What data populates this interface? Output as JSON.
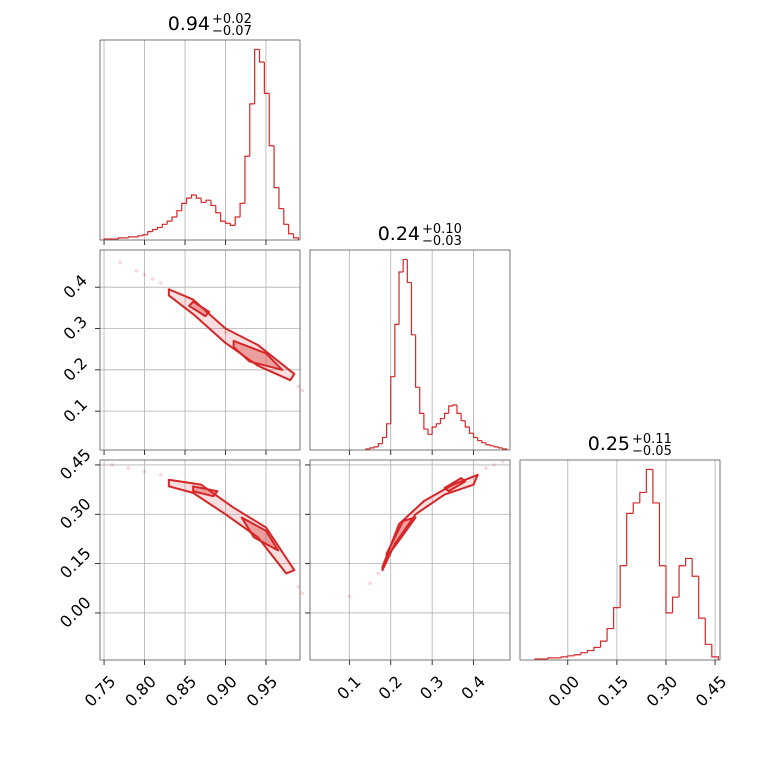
{
  "chart_data": [
    {
      "type": "histogram",
      "title": {
        "value": "0.94",
        "plus": "+0.02",
        "minus": "−0.07"
      },
      "color": "#d62728",
      "bins": [
        0.75,
        0.756,
        0.762,
        0.768,
        0.774,
        0.78,
        0.786,
        0.792,
        0.798,
        0.804,
        0.81,
        0.816,
        0.822,
        0.828,
        0.834,
        0.84,
        0.846,
        0.852,
        0.858,
        0.864,
        0.87,
        0.876,
        0.882,
        0.888,
        0.894,
        0.9,
        0.906,
        0.912,
        0.918,
        0.924,
        0.93,
        0.936,
        0.942,
        0.948,
        0.954,
        0.96,
        0.966,
        0.972,
        0.978,
        0.984,
        0.99
      ],
      "values": [
        1,
        1,
        1,
        2,
        2,
        3,
        3,
        4,
        5,
        8,
        10,
        12,
        15,
        18,
        22,
        28,
        35,
        40,
        43,
        40,
        36,
        38,
        33,
        26,
        18,
        16,
        14,
        22,
        35,
        80,
        130,
        182,
        170,
        140,
        90,
        50,
        30,
        15,
        6,
        2
      ],
      "xlim": [
        0.745,
        0.992
      ],
      "xticks": [
        0.75,
        0.8,
        0.85,
        0.9,
        0.95
      ],
      "ylim": [
        0,
        191
      ],
      "grid": true
    },
    {
      "type": "contour",
      "color": "#d62728",
      "xlim": [
        0.745,
        0.992
      ],
      "xticks": [
        0.75,
        0.8,
        0.85,
        0.9,
        0.95
      ],
      "ylim": [
        0.006,
        0.49
      ],
      "yticks": [
        0.1,
        0.2,
        0.3,
        0.4
      ],
      "grid": true,
      "points": {
        "x": [
          0.77,
          0.79,
          0.8,
          0.81,
          0.82,
          0.99,
          0.995,
          0.9
        ],
        "y": [
          0.46,
          0.44,
          0.43,
          0.42,
          0.41,
          0.16,
          0.15,
          0.29
        ]
      },
      "contours": [
        {
          "x": [
            0.83,
            0.86,
            0.9,
            0.94,
            0.985,
            0.98,
            0.94,
            0.9,
            0.86,
            0.83
          ],
          "y": [
            0.395,
            0.37,
            0.3,
            0.26,
            0.19,
            0.175,
            0.21,
            0.265,
            0.335,
            0.38
          ]
        },
        {
          "x": [
            0.86,
            0.88,
            0.875,
            0.855
          ],
          "y": [
            0.365,
            0.34,
            0.33,
            0.355
          ]
        },
        {
          "x": [
            0.91,
            0.95,
            0.97,
            0.93,
            0.91
          ],
          "y": [
            0.27,
            0.24,
            0.2,
            0.22,
            0.255
          ]
        }
      ]
    },
    {
      "type": "histogram",
      "title": {
        "value": "0.24",
        "plus": "+0.10",
        "minus": "−0.03"
      },
      "color": "#d62728",
      "bins": [
        0.14,
        0.15,
        0.16,
        0.17,
        0.18,
        0.19,
        0.2,
        0.21,
        0.22,
        0.23,
        0.24,
        0.25,
        0.26,
        0.27,
        0.28,
        0.29,
        0.3,
        0.31,
        0.32,
        0.33,
        0.34,
        0.35,
        0.36,
        0.37,
        0.38,
        0.39,
        0.4,
        0.41,
        0.42,
        0.43,
        0.44,
        0.45,
        0.46,
        0.47,
        0.48
      ],
      "values": [
        1,
        2,
        3,
        6,
        12,
        25,
        70,
        120,
        170,
        182,
        160,
        110,
        60,
        35,
        20,
        15,
        22,
        25,
        30,
        35,
        42,
        43,
        35,
        28,
        22,
        16,
        12,
        9,
        7,
        5,
        4,
        3,
        2,
        1
      ],
      "xlim": [
        0.005,
        0.488
      ],
      "xticks": [
        0.1,
        0.2,
        0.3,
        0.4
      ],
      "ylim": [
        0,
        191
      ],
      "grid": true
    },
    {
      "type": "contour",
      "color": "#d62728",
      "xlim": [
        0.745,
        0.992
      ],
      "xticks": [
        {
          "value": 0.75,
          "label": "0.75"
        },
        {
          "value": 0.8,
          "label": "0.80"
        },
        {
          "value": 0.85,
          "label": "0.85"
        },
        {
          "value": 0.9,
          "label": "0.90"
        },
        {
          "value": 0.95,
          "label": "0.95"
        }
      ],
      "ylim": [
        -0.143,
        0.465
      ],
      "yticks": [
        {
          "value": 0,
          "label": "0.00"
        },
        {
          "value": 0.15,
          "label": "0.15"
        },
        {
          "value": 0.3,
          "label": "0.30"
        },
        {
          "value": 0.45,
          "label": "0.45"
        }
      ],
      "grid": true,
      "points": {
        "x": [
          0.76,
          0.78,
          0.8,
          0.82,
          0.99,
          0.995
        ],
        "y": [
          0.45,
          0.44,
          0.43,
          0.42,
          0.08,
          0.06
        ]
      },
      "contours": [
        {
          "x": [
            0.83,
            0.87,
            0.91,
            0.95,
            0.985,
            0.975,
            0.94,
            0.9,
            0.86,
            0.83
          ],
          "y": [
            0.405,
            0.39,
            0.32,
            0.26,
            0.13,
            0.12,
            0.23,
            0.3,
            0.365,
            0.385
          ]
        },
        {
          "x": [
            0.86,
            0.89,
            0.885,
            0.86
          ],
          "y": [
            0.385,
            0.37,
            0.355,
            0.37
          ]
        },
        {
          "x": [
            0.92,
            0.95,
            0.965,
            0.935
          ],
          "y": [
            0.29,
            0.25,
            0.19,
            0.23
          ]
        }
      ]
    },
    {
      "type": "contour",
      "color": "#d62728",
      "xlim": [
        0.005,
        0.488
      ],
      "xticks": [
        0.1,
        0.2,
        0.3,
        0.4
      ],
      "ylim": [
        -0.143,
        0.465
      ],
      "yticks": [
        0,
        0.15,
        0.3,
        0.45
      ],
      "grid": true,
      "points": {
        "x": [
          0.1,
          0.15,
          0.17,
          0.43,
          0.45,
          0.47
        ],
        "y": [
          0.05,
          0.09,
          0.12,
          0.44,
          0.45,
          0.46
        ]
      },
      "contours": [
        {
          "x": [
            0.18,
            0.22,
            0.28,
            0.35,
            0.41,
            0.4,
            0.33,
            0.26,
            0.21,
            0.18
          ],
          "y": [
            0.14,
            0.27,
            0.34,
            0.39,
            0.42,
            0.39,
            0.36,
            0.3,
            0.21,
            0.13
          ]
        },
        {
          "x": [
            0.19,
            0.23,
            0.26,
            0.22,
            0.19
          ],
          "y": [
            0.18,
            0.28,
            0.29,
            0.22,
            0.17
          ]
        },
        {
          "x": [
            0.33,
            0.37,
            0.38,
            0.34
          ],
          "y": [
            0.38,
            0.41,
            0.4,
            0.37
          ]
        }
      ]
    },
    {
      "type": "histogram",
      "title": {
        "value": "0.25",
        "plus": "+0.11",
        "minus": "−0.05"
      },
      "color": "#d62728",
      "bins": [
        -0.1,
        -0.08,
        -0.06,
        -0.04,
        -0.02,
        0,
        0.02,
        0.04,
        0.06,
        0.08,
        0.1,
        0.12,
        0.14,
        0.16,
        0.18,
        0.2,
        0.22,
        0.24,
        0.26,
        0.28,
        0.3,
        0.32,
        0.34,
        0.36,
        0.38,
        0.4,
        0.42,
        0.44,
        0.46
      ],
      "values": [
        1,
        1,
        2,
        2,
        3,
        4,
        5,
        7,
        9,
        12,
        18,
        30,
        50,
        90,
        140,
        150,
        160,
        182,
        150,
        90,
        45,
        60,
        90,
        97,
        80,
        40,
        15,
        3
      ],
      "xlim": [
        -0.146,
        0.465
      ],
      "xticks": [
        {
          "value": 0,
          "label": "0.00"
        },
        {
          "value": 0.15,
          "label": "0.15"
        },
        {
          "value": 0.3,
          "label": "0.30"
        },
        {
          "value": 0.45,
          "label": "0.45"
        }
      ],
      "ylim": [
        0,
        191
      ],
      "grid": true
    }
  ]
}
